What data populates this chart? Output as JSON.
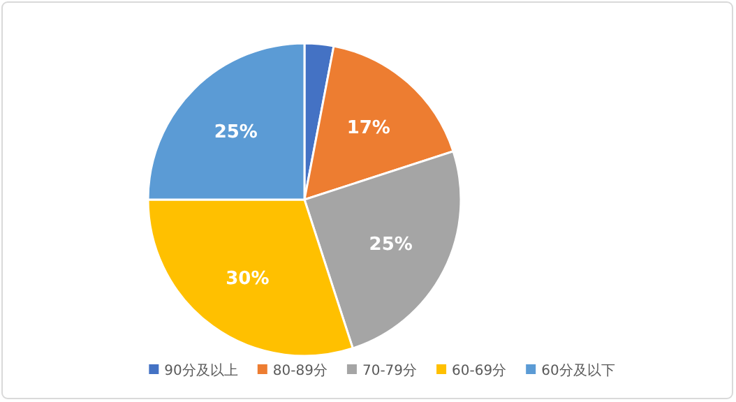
{
  "chart_data": {
    "type": "pie",
    "categories": [
      "90分及以上",
      "80-89分",
      "70-79分",
      "60-69分",
      "60分及以下"
    ],
    "values": [
      3,
      17,
      25,
      30,
      25
    ],
    "colors": [
      "#4472c4",
      "#ed7d31",
      "#a5a5a5",
      "#ffc000",
      "#5b9bd5"
    ],
    "value_labels": [
      null,
      "17%",
      "25%",
      "30%",
      "25%"
    ],
    "legend": "bottom"
  }
}
